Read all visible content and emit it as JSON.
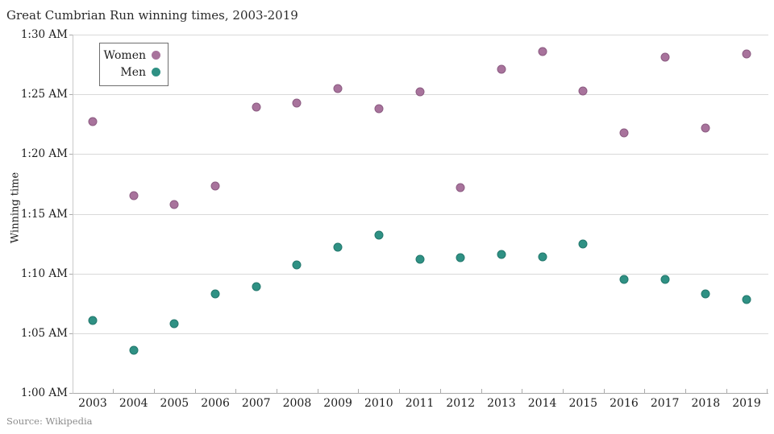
{
  "source": {
    "note": "Source: Wikipedia"
  },
  "colors": {
    "women": "#a8739c",
    "women_border": "#8c5c82",
    "men": "#2f9184",
    "men_border": "#23786d",
    "gridline": "#d9d9d9",
    "axis": "#aaaaaa",
    "text": "#1d1d1d",
    "muted_text": "#8c8c8c"
  },
  "chart_data": {
    "type": "scatter",
    "title": "Great Cumbrian Run winning times, 2003-2019",
    "ylabel": "Winning time",
    "xlabel": "",
    "grid": "horizontal",
    "legend_position": "top-left-inside",
    "x_categories": [
      "2003",
      "2004",
      "2005",
      "2006",
      "2007",
      "2008",
      "2009",
      "2010",
      "2011",
      "2012",
      "2013",
      "2014",
      "2015",
      "2016",
      "2017",
      "2018",
      "2019"
    ],
    "y_axis": {
      "min_minutes_after_midnight": 60,
      "max_minutes_after_midnight": 90,
      "tick_interval_minutes": 5,
      "tick_labels": [
        "1:00 AM",
        "1:05 AM",
        "1:10 AM",
        "1:15 AM",
        "1:20 AM",
        "1:25 AM",
        "1:30 AM"
      ]
    },
    "series": [
      {
        "name": "Women",
        "color": "#a8739c",
        "values_minutes_after_midnight": [
          82.7,
          76.5,
          75.8,
          77.3,
          83.9,
          84.3,
          85.5,
          83.8,
          85.2,
          77.2,
          87.1,
          88.6,
          85.3,
          81.8,
          88.1,
          82.2,
          88.4
        ]
      },
      {
        "name": "Men",
        "color": "#2f9184",
        "values_minutes_after_midnight": [
          66.1,
          63.6,
          65.8,
          68.3,
          68.9,
          70.7,
          72.2,
          73.2,
          71.2,
          71.3,
          71.6,
          71.4,
          72.5,
          69.5,
          69.5,
          68.3,
          67.8
        ]
      }
    ]
  }
}
